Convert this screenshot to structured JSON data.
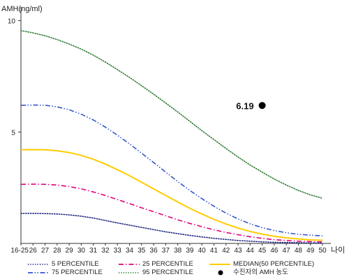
{
  "chart_data": {
    "type": "line",
    "ylabel": "AMH(ng/ml)",
    "xlabel": "나이",
    "x_ticks": [
      "16-25",
      "26",
      "27",
      "28",
      "29",
      "30",
      "31",
      "32",
      "33",
      "34",
      "35",
      "36",
      "37",
      "38",
      "39",
      "40",
      "41",
      "42",
      "43",
      "44",
      "45",
      "46",
      "47",
      "48",
      "49",
      "50"
    ],
    "x": [
      25,
      26,
      27,
      28,
      29,
      30,
      31,
      32,
      33,
      34,
      35,
      36,
      37,
      38,
      39,
      40,
      41,
      42,
      43,
      44,
      45,
      46,
      47,
      48,
      49,
      50
    ],
    "y_ticks": [
      5,
      10
    ],
    "ylim": [
      0,
      10.8
    ],
    "grid": false,
    "legend_position": "bottom",
    "series": [
      {
        "name": "5 PERCENTILE",
        "color": "#1a237e",
        "style": "dotted",
        "values": [
          1.35,
          1.35,
          1.34,
          1.32,
          1.28,
          1.22,
          1.14,
          1.03,
          0.92,
          0.82,
          0.72,
          0.62,
          0.52,
          0.44,
          0.36,
          0.29,
          0.23,
          0.18,
          0.13,
          0.1,
          0.07,
          0.05,
          0.04,
          0.03,
          0.02,
          0.02
        ]
      },
      {
        "name": "25 PERCENTILE",
        "color": "#e0007a",
        "style": "dashdot",
        "values": [
          2.65,
          2.66,
          2.65,
          2.62,
          2.55,
          2.45,
          2.31,
          2.15,
          1.97,
          1.79,
          1.6,
          1.42,
          1.24,
          1.06,
          0.9,
          0.75,
          0.61,
          0.49,
          0.39,
          0.3,
          0.23,
          0.17,
          0.13,
          0.1,
          0.08,
          0.07
        ]
      },
      {
        "name": "MEDIAN(50 PERCENTILE)",
        "color": "#ffcc00",
        "style": "solid",
        "values": [
          4.2,
          4.21,
          4.2,
          4.16,
          4.08,
          3.95,
          3.78,
          3.56,
          3.31,
          3.04,
          2.75,
          2.45,
          2.15,
          1.86,
          1.58,
          1.32,
          1.08,
          0.87,
          0.69,
          0.54,
          0.42,
          0.32,
          0.25,
          0.2,
          0.16,
          0.14
        ]
      },
      {
        "name": "75 PERCENTILE",
        "color": "#3355cc",
        "style": "dashdotdot",
        "values": [
          6.2,
          6.21,
          6.2,
          6.13,
          6.0,
          5.8,
          5.54,
          5.22,
          4.86,
          4.47,
          4.05,
          3.63,
          3.2,
          2.78,
          2.38,
          2.01,
          1.67,
          1.36,
          1.1,
          0.88,
          0.71,
          0.58,
          0.48,
          0.41,
          0.37,
          0.34
        ]
      },
      {
        "name": "95 PERCENTILE",
        "color": "#2e7d32",
        "style": "dotted",
        "values": [
          9.55,
          9.45,
          9.32,
          9.15,
          8.95,
          8.72,
          8.45,
          8.14,
          7.8,
          7.45,
          7.08,
          6.7,
          6.3,
          5.9,
          5.48,
          5.06,
          4.66,
          4.26,
          3.88,
          3.52,
          3.2,
          2.89,
          2.62,
          2.38,
          2.18,
          2.03
        ]
      }
    ],
    "marker": {
      "name": "수진자의 AMH 농도",
      "x": 45,
      "y": 6.19,
      "label": "6.19",
      "color": "#000000"
    }
  }
}
